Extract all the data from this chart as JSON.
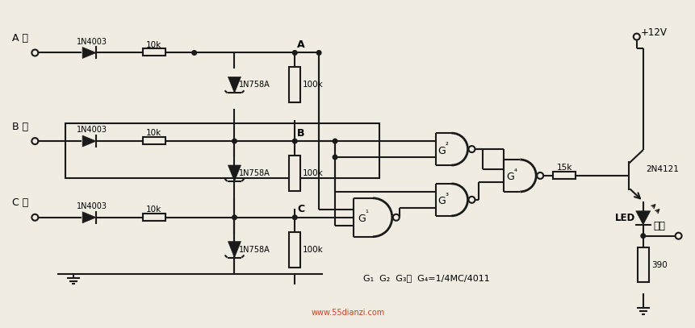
{
  "bg_color": "#f0ece2",
  "lc": "#1a1a1a",
  "lw": 1.5,
  "fw": 8.62,
  "fh": 4.07,
  "wm": "www.55dianzi.com",
  "wm_color": "#cc2200",
  "phase_labels": [
    "A 相",
    "B 相",
    "C 相"
  ],
  "node_labels": [
    "A",
    "B",
    "C"
  ],
  "diode_label": "1N4003",
  "zener_label": "1N758A",
  "r1_label": "10k",
  "r2_label": "100k",
  "r3_label": "15k",
  "r4_label": "390",
  "gate_labels": [
    "G₁",
    "G₂",
    "G₃",
    "G₄"
  ],
  "transistor_label": "2N4121",
  "supply_label": "+12V",
  "led_label": "LED",
  "output_label": "输出",
  "ic_note": "G₁  G₂  G₃，  G₄=1/4MC/4011"
}
